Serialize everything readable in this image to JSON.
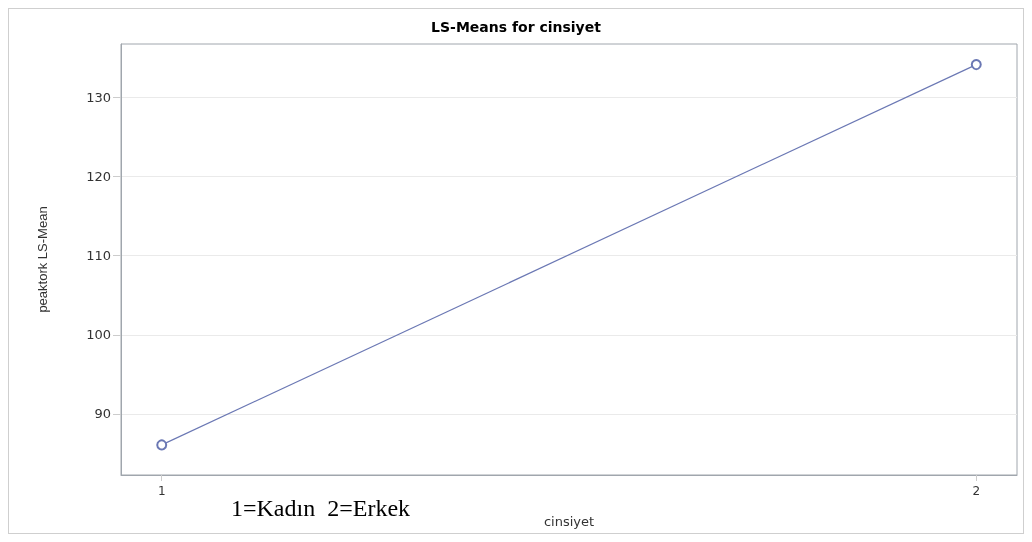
{
  "chart_data": {
    "type": "line",
    "title": "LS-Means for cinsiyet",
    "xlabel": "cinsiyet",
    "ylabel": "peaktork LS-Mean",
    "annotations": [
      "1=Kadın  2=Erkek"
    ],
    "x": [
      1,
      2
    ],
    "series": [
      {
        "color": "#6b78b4",
        "values": [
          86.1,
          134.1
        ]
      }
    ],
    "xlim": [
      0.95,
      2.05
    ],
    "xticks": [
      1,
      2
    ],
    "ylim": [
      82.3,
      136.7
    ],
    "yticks": [
      90,
      100,
      110,
      120,
      130
    ],
    "grid": "y",
    "marker": "circle",
    "line_style": "solid"
  }
}
